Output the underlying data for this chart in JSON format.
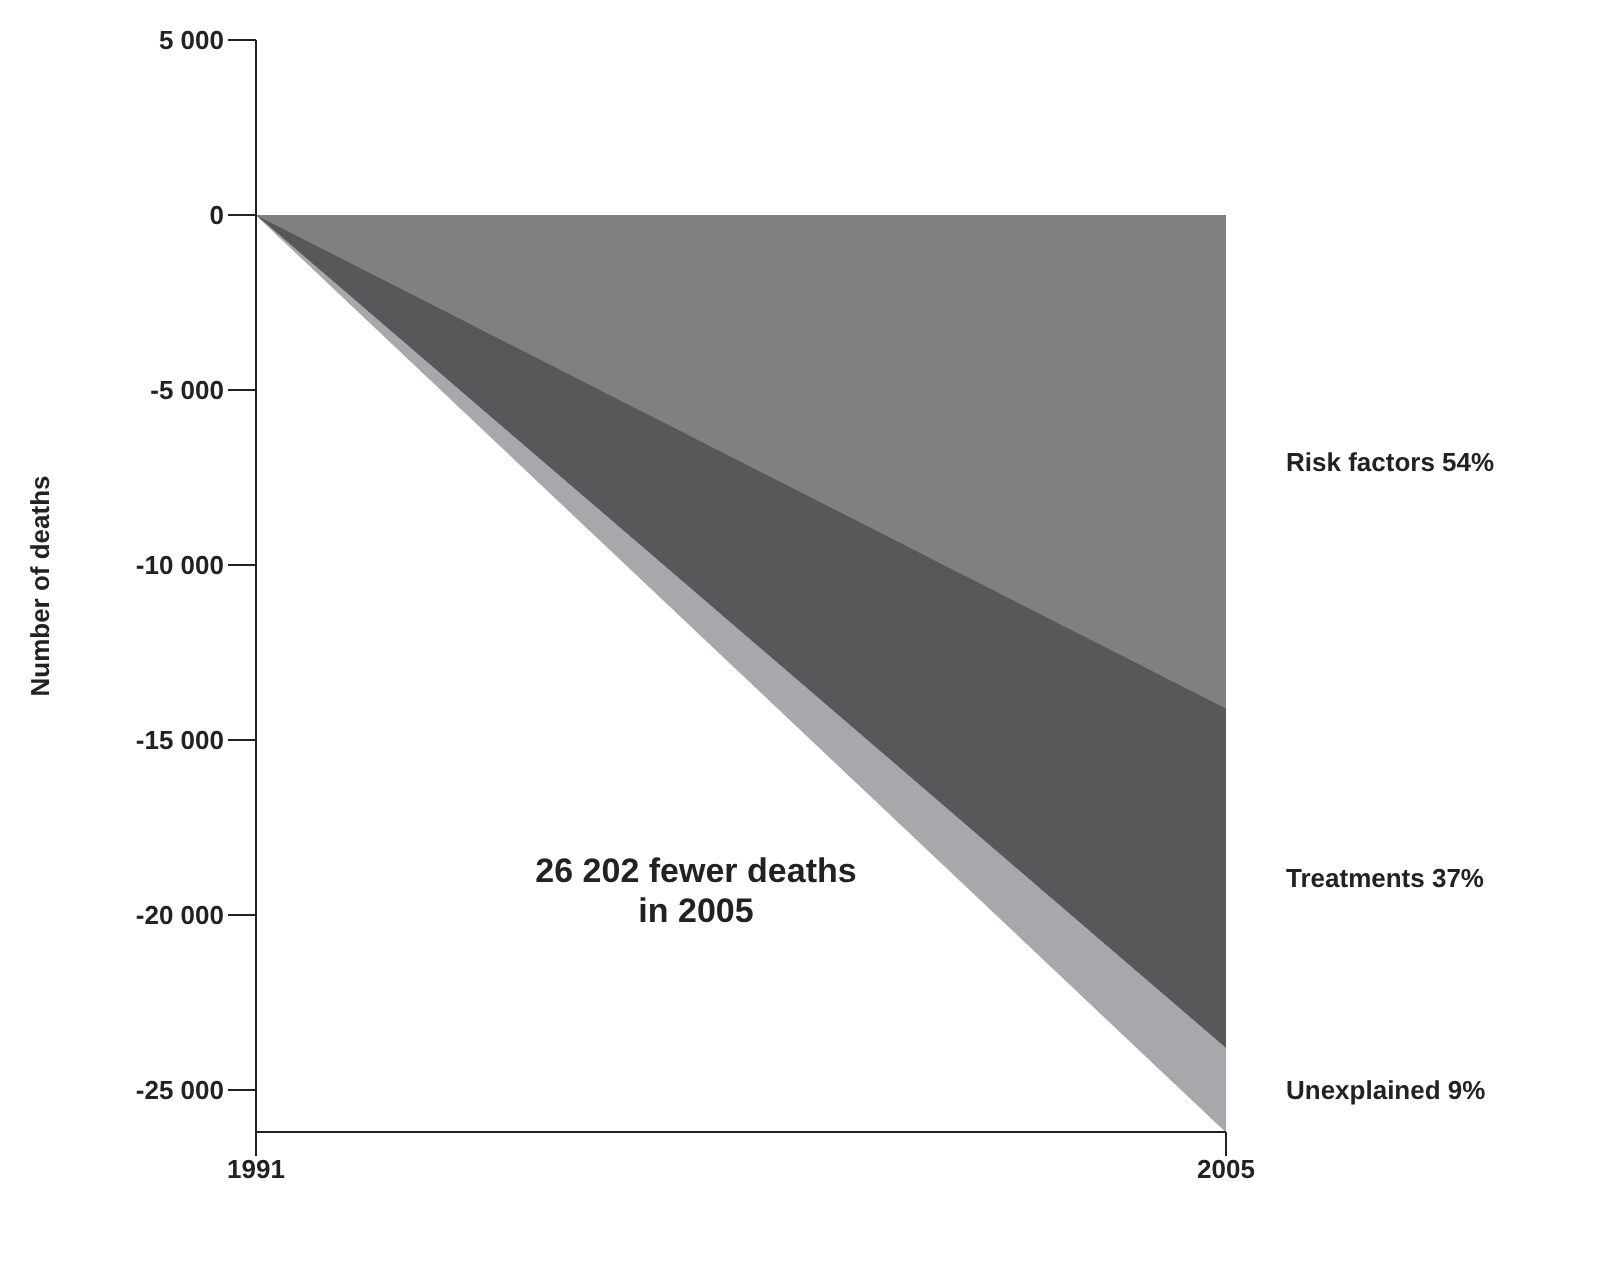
{
  "chart_data": {
    "type": "area",
    "stacked": true,
    "x": [
      1991,
      2005
    ],
    "series": [
      {
        "name": "Risk factors 54%",
        "color": "#808083",
        "values": [
          0,
          -14100
        ]
      },
      {
        "name": "Treatments 37%",
        "color": "#58585a",
        "values": [
          0,
          -9700
        ]
      },
      {
        "name": "Unexplained 9%",
        "color": "#a7a8ab",
        "values": [
          0,
          -2400
        ]
      }
    ],
    "ylabel": "Number of deaths",
    "xlim": [
      1991,
      2005
    ],
    "xticks": [
      1991,
      2005
    ],
    "ylim": [
      -26200,
      5000
    ],
    "yticks": [
      {
        "value": 5000,
        "label": "5 000"
      },
      {
        "value": 0,
        "label": "0"
      },
      {
        "value": -5000,
        "label": "-5 000"
      },
      {
        "value": -10000,
        "label": "-10 000"
      },
      {
        "value": -15000,
        "label": "-15 000"
      },
      {
        "value": -20000,
        "label": "-20 000"
      },
      {
        "value": -25000,
        "label": "-25 000"
      }
    ],
    "annotations": [
      "26 202 fewer deaths\nin 2005"
    ],
    "grid": false,
    "legend": false
  }
}
